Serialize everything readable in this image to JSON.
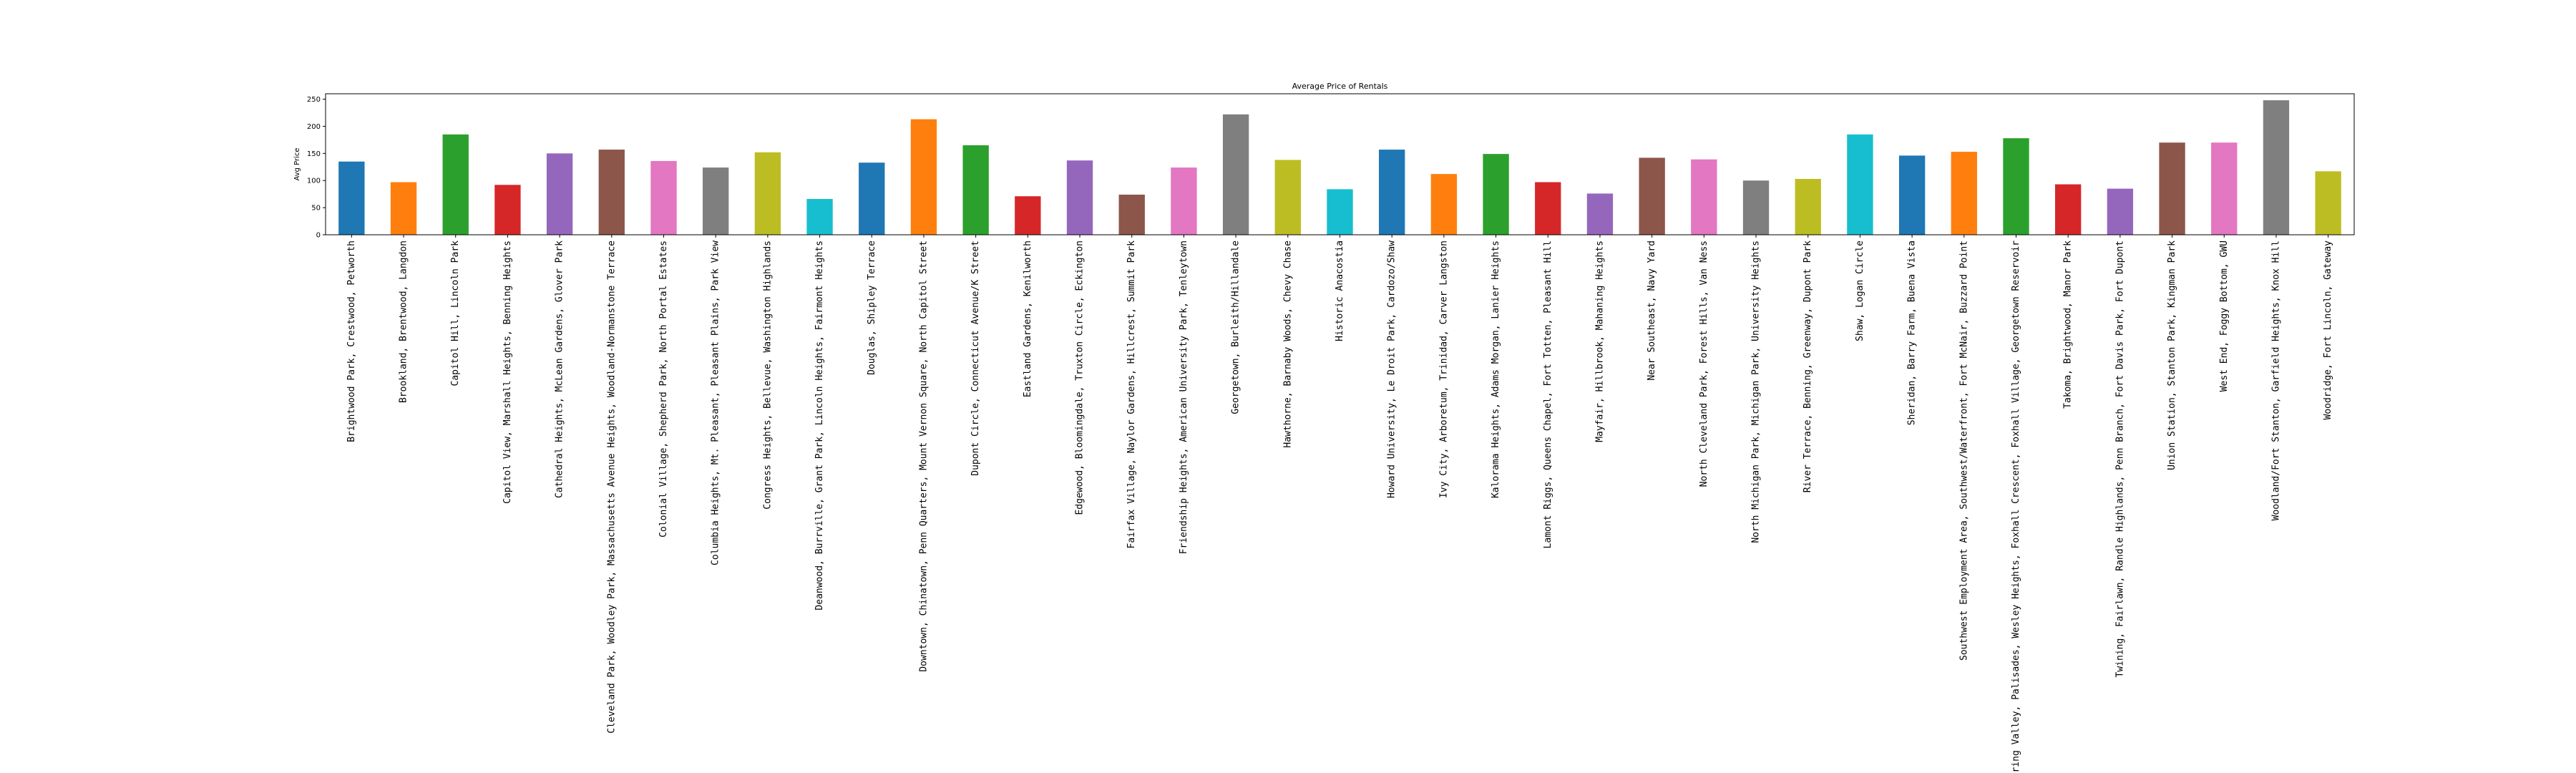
{
  "chart_data": {
    "type": "bar",
    "title": "Average Price of Rentals",
    "xlabel": "",
    "ylabel": "Avg Price",
    "ylim": [
      0,
      260
    ],
    "yticks": [
      0,
      50,
      100,
      150,
      200,
      250
    ],
    "grid": false,
    "legend": "none",
    "categories": [
      "Brightwood Park, Crestwood, Petworth",
      "Brookland, Brentwood, Langdon",
      "Capitol Hill, Lincoln Park",
      "Capitol View, Marshall Heights, Benning Heights",
      "Cathedral Heights, McLean Gardens, Glover Park",
      "Cleveland Park, Woodley Park, Massachusetts Avenue Heights, Woodland-Normanstone Terrace",
      "Colonial Village, Shepherd Park, North Portal Estates",
      "Columbia Heights, Mt. Pleasant, Pleasant Plains, Park View",
      "Congress Heights, Bellevue, Washington Highlands",
      "Deanwood, Burrville, Grant Park, Lincoln Heights, Fairmont Heights",
      "Douglas, Shipley Terrace",
      "Downtown, Chinatown, Penn Quarters, Mount Vernon Square, North Capitol Street",
      "Dupont Circle, Connecticut Avenue/K Street",
      "Eastland Gardens, Kenilworth",
      "Edgewood, Bloomingdale, Truxton Circle, Eckington",
      "Fairfax Village, Naylor Gardens, Hillcrest, Summit Park",
      "Friendship Heights, American University Park, Tenleytown",
      "Georgetown, Burleith/Hillandale",
      "Hawthorne, Barnaby Woods, Chevy Chase",
      "Historic Anacostia",
      "Howard University, Le Droit Park, Cardozo/Shaw",
      "Ivy City, Arboretum, Trinidad, Carver Langston",
      "Kalorama Heights, Adams Morgan, Lanier Heights",
      "Lamont Riggs, Queens Chapel, Fort Totten, Pleasant Hill",
      "Mayfair, Hillbrook, Mahaning Heights",
      "Near Southeast, Navy Yard",
      "North Cleveland Park, Forest Hills, Van Ness",
      "North Michigan Park, Michigan Park, University Heights",
      "River Terrace, Benning, Greenway, Dupont Park",
      "Shaw, Logan Circle",
      "Sheridan, Barry Farm, Buena Vista",
      "Southwest Employment Area, Southwest/Waterfront, Fort McNair, Buzzard Point",
      "Spring Valley, Palisades, Wesley Heights, Foxhall Crescent, Foxhall Village, Georgetown Reservoir",
      "Takoma, Brightwood, Manor Park",
      "Twining, Fairlawn, Randle Highlands, Penn Branch, Fort Davis Park, Fort Dupont",
      "Union Station, Stanton Park, Kingman Park",
      "West End, Foggy Bottom, GWU",
      "Woodland/Fort Stanton, Garfield Heights, Knox Hill",
      "Woodridge, Fort Lincoln, Gateway"
    ],
    "values": [
      135,
      97,
      185,
      92,
      150,
      157,
      136,
      124,
      152,
      66,
      133,
      213,
      165,
      71,
      137,
      74,
      124,
      222,
      138,
      84,
      157,
      112,
      149,
      97,
      76,
      142,
      139,
      100,
      103,
      185,
      146,
      153,
      178,
      93,
      85,
      170,
      170,
      248,
      117
    ],
    "colors": [
      "#1f77b4",
      "#ff7f0e",
      "#2ca02c",
      "#d62728",
      "#9467bd",
      "#8c564b",
      "#e377c2",
      "#7f7f7f",
      "#bcbd22",
      "#17becf"
    ]
  }
}
